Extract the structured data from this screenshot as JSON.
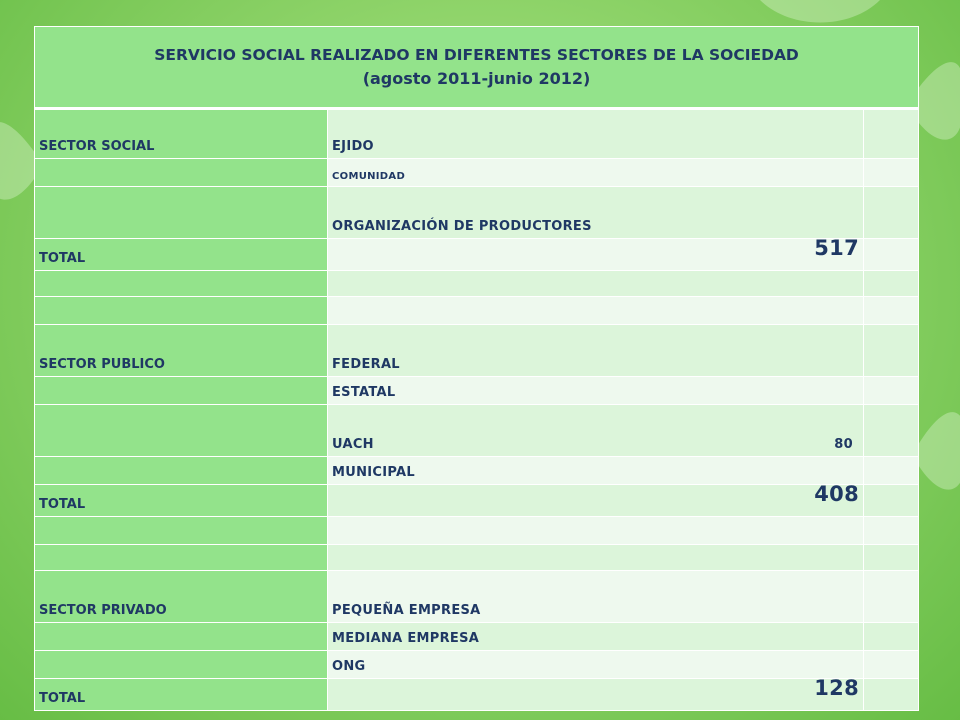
{
  "title": {
    "line1": "SERVICIO SOCIAL REALIZADO EN DIFERENTES SECTORES DE LA SOCIEDAD",
    "line2": "(agosto 2011-junio 2012)"
  },
  "social": {
    "label": "SECTOR SOCIAL",
    "items": [
      "EJIDO",
      "COMUNIDAD",
      "ORGANIZACIÓN DE PRODUCTORES"
    ],
    "total_label": "TOTAL",
    "total": "517"
  },
  "publico": {
    "label": "SECTOR PUBLICO",
    "items": [
      "FEDERAL",
      "ESTATAL",
      "UACH",
      "MUNICIPAL"
    ],
    "uach_value": "80",
    "total_label": "TOTAL",
    "total": "408"
  },
  "privado": {
    "label": "SECTOR PRIVADO",
    "items": [
      "PEQUEÑA EMPRESA",
      "MEDIANA EMPRESA",
      "ONG"
    ],
    "total_label": "TOTAL",
    "total": "128"
  },
  "colors": {
    "header_green": "#93e38b",
    "row_dark": "#dcf5da",
    "row_light": "#eef9ee",
    "text": "#1f3864"
  }
}
